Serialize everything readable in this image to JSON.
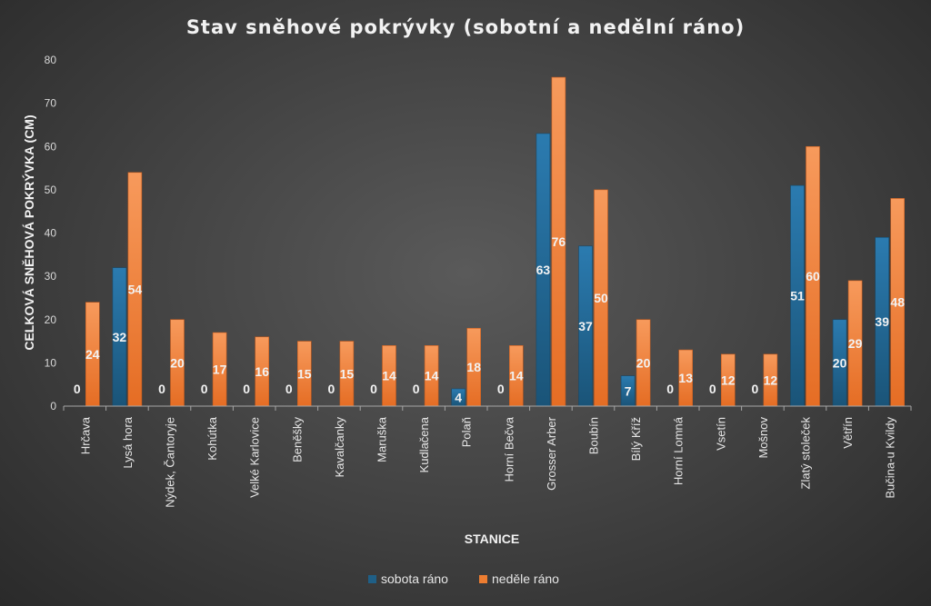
{
  "chart_data": {
    "type": "bar",
    "title": "Stav sněhové pokrývky (sobotní a nedělní ráno)",
    "xlabel": "STANICE",
    "ylabel": "CELKOVÁ SNĚHOVÁ POKRÝVKA (CM)",
    "ylim": [
      0,
      80
    ],
    "yticks": [
      0,
      10,
      20,
      30,
      40,
      50,
      60,
      70,
      80
    ],
    "grid": false,
    "legend": "bottom",
    "categories": [
      "Hrčava",
      "Lysá hora",
      "Nýdek, Čantoryje",
      "Kohútka",
      "Velké Karlovice",
      "Beněšky",
      "Kavalčanky",
      "Maruška",
      "Kudlačena",
      "Polaň",
      "Horní Bečva",
      "Grosser Arber",
      "Boubín",
      "Bílý Kříž",
      "Horní Lomná",
      "Vsetín",
      "Mošnov",
      "Zlatý stoleček",
      "Větřín",
      "Bučina-u Kvildy"
    ],
    "series": [
      {
        "name": "sobota ráno",
        "color": "#1f5f86",
        "values": [
          0,
          32,
          0,
          0,
          0,
          0,
          0,
          0,
          0,
          4,
          0,
          63,
          37,
          7,
          0,
          0,
          0,
          51,
          20,
          39
        ]
      },
      {
        "name": "neděle ráno",
        "color": "#ed7d31",
        "values": [
          24,
          54,
          20,
          17,
          16,
          15,
          15,
          14,
          14,
          18,
          14,
          76,
          50,
          20,
          13,
          12,
          12,
          60,
          29,
          48
        ]
      }
    ]
  }
}
